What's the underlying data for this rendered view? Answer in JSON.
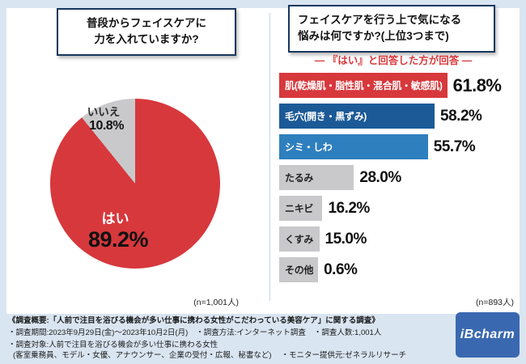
{
  "colors": {
    "background": "#d9e5f1",
    "panel": "#ffffff",
    "accent_red": "#d7383c",
    "dark_blue": "#1b5a97",
    "mid_blue": "#2e7fbe",
    "gray_bar": "#c9c9cb",
    "title_border_navy": "#17375e",
    "logo_blue": "#3a68b0"
  },
  "left_section": {
    "title_line1": "普段からフェイスケアに",
    "title_line2": "力を入れていますか?",
    "sample_note": "(n=1,001人)"
  },
  "right_section": {
    "title_line1": "フェイスケアを行う上で気になる",
    "title_line2": "悩みは何ですか?(上位3つまで)",
    "subtitle": "― 『はい』と回答した方が回答 ―",
    "sample_note": "(n=893人)"
  },
  "chart_data": [
    {
      "type": "pie",
      "title": "普段からフェイスケアに力を入れていますか?",
      "slices": [
        {
          "label": "はい",
          "value": 89.2,
          "display": "89.2%",
          "color": "#d7383c"
        },
        {
          "label": "いいえ",
          "value": 10.8,
          "display": "10.8%",
          "color": "#c9c9cb"
        }
      ],
      "sample_note": "(n=1,001人)"
    },
    {
      "type": "bar",
      "title": "フェイスケアを行う上で気になる悩みは何ですか?(上位3つまで)",
      "subtitle": "― 『はい』と回答した方が回答 ―",
      "orientation": "horizontal",
      "xlim": [
        0,
        65
      ],
      "items": [
        {
          "label": "肌(乾燥肌・脂性肌・混合肌・敏感肌)",
          "value": 61.8,
          "display": "61.8%",
          "color": "#d7383c",
          "text_color": "#ffffff"
        },
        {
          "label": "毛穴(開き・黒ずみ)",
          "value": 58.2,
          "display": "58.2%",
          "color": "#1b5a97",
          "text_color": "#ffffff"
        },
        {
          "label": "シミ・しわ",
          "value": 55.7,
          "display": "55.7%",
          "color": "#2e7fbe",
          "text_color": "#ffffff"
        },
        {
          "label": "たるみ",
          "value": 28.0,
          "display": "28.0%",
          "color": "#c9c9cb",
          "text_color": "#222222"
        },
        {
          "label": "ニキビ",
          "value": 16.2,
          "display": "16.2%",
          "color": "#c9c9cb",
          "text_color": "#222222"
        },
        {
          "label": "くすみ",
          "value": 15.0,
          "display": "15.0%",
          "color": "#c9c9cb",
          "text_color": "#222222"
        },
        {
          "label": "その他",
          "value": 0.6,
          "display": "0.6%",
          "color": "#c9c9cb",
          "text_color": "#222222"
        }
      ],
      "sample_note": "(n=893人)"
    }
  ],
  "footer": {
    "line1": "《調査概要:「人前で注目を浴びる機会が多い仕事に携わる女性がこだわっている美容ケア」に関する調査》",
    "line2_items": [
      "・調査期間:2023年9月29日(金)〜2023年10月2日(月)",
      "・調査方法:インターネット調査",
      "・調査人数:1,001人"
    ],
    "line3": "・調査対象:人前で注目を浴びる機会が多い仕事に携わる女性",
    "line4": "(客室乗務員、モデル・女優、アナウンサー、企業の受付・広報、秘書など)",
    "line4_right": "・モニター提供元:ゼネラルリサーチ",
    "logo_text": "iBcharm"
  }
}
